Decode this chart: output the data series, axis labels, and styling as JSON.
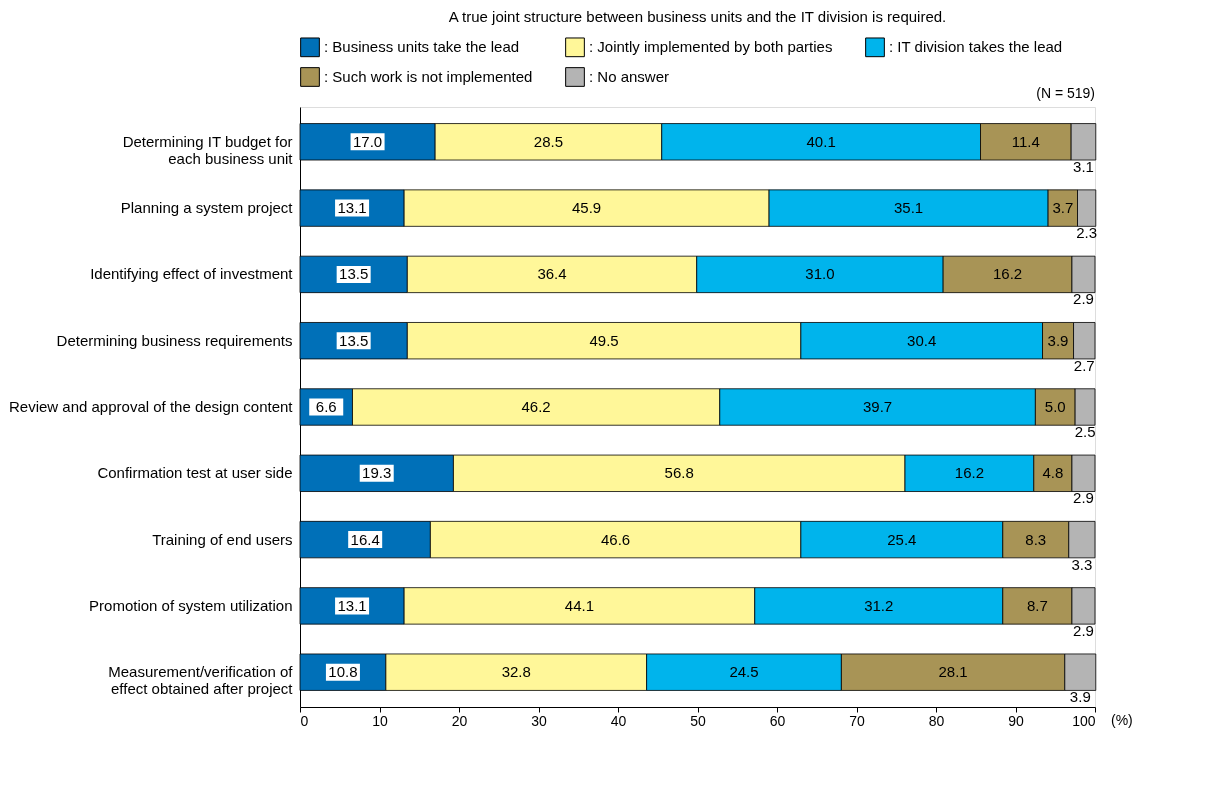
{
  "chart_data": {
    "type": "bar",
    "orientation": "horizontal",
    "stacked": true,
    "title": "A true joint structure between business units and the IT division is required.",
    "categories": [
      "Determining IT budget for\neach business unit",
      "Planning a system project",
      "Identifying effect of investment",
      "Determining business requirements",
      "Review and approval of the design content",
      "Confirmation test at user side",
      "Training of end users",
      "Promotion of system utilization",
      "Measurement/verification of\neffect obtained after project"
    ],
    "series": [
      {
        "name": ": Business units take the lead",
        "color": "#0070b8",
        "values": [
          17.0,
          13.1,
          13.5,
          13.5,
          6.6,
          19.3,
          16.4,
          13.1,
          10.8
        ],
        "value_labels": [
          "17.0",
          "13.1",
          "13.5",
          "13.5",
          "6.6",
          "19.3",
          "16.4",
          "13.1",
          "10.8"
        ]
      },
      {
        "name": ": Jointly implemented by both parties",
        "color": "#fff799",
        "values": [
          28.5,
          45.9,
          36.4,
          49.5,
          46.2,
          56.8,
          46.6,
          44.1,
          32.8
        ],
        "value_labels": [
          "28.5",
          "45.9",
          "36.4",
          "49.5",
          "46.2",
          "56.8",
          "46.6",
          "44.1",
          "32.8"
        ]
      },
      {
        "name": ": IT division takes the lead",
        "color": "#00b4ec",
        "values": [
          40.1,
          35.1,
          31.0,
          30.4,
          39.7,
          16.2,
          25.4,
          31.2,
          24.5
        ],
        "value_labels": [
          "40.1",
          "35.1",
          "31.0",
          "30.4",
          "39.7",
          "16.2",
          "25.4",
          "31.2",
          "24.5"
        ]
      },
      {
        "name": ": Such work is not implemented",
        "color": "#a89456",
        "values": [
          11.4,
          3.7,
          16.2,
          3.9,
          5.0,
          4.8,
          8.3,
          8.7,
          28.1
        ],
        "value_labels": [
          "11.4",
          "3.7",
          "16.2",
          "3.9",
          "5.0",
          "4.8",
          "8.3",
          "8.7",
          "28.1"
        ]
      },
      {
        "name": ": No answer",
        "color": "#b4b4b4",
        "values": [
          3.1,
          2.3,
          2.9,
          2.7,
          2.5,
          2.9,
          3.3,
          2.9,
          3.9
        ],
        "value_labels": [
          "3.1",
          "2.3",
          "2.9",
          "2.7",
          "2.5",
          "2.9",
          "3.3",
          "2.9",
          "3.9"
        ]
      }
    ],
    "xlim": [
      0,
      100
    ],
    "xticks": [
      0,
      10,
      20,
      30,
      40,
      50,
      60,
      70,
      80,
      90,
      100
    ],
    "xlabel": "(%)",
    "legend": "top",
    "grid": false,
    "annotations": [
      "(N = 519)"
    ]
  }
}
